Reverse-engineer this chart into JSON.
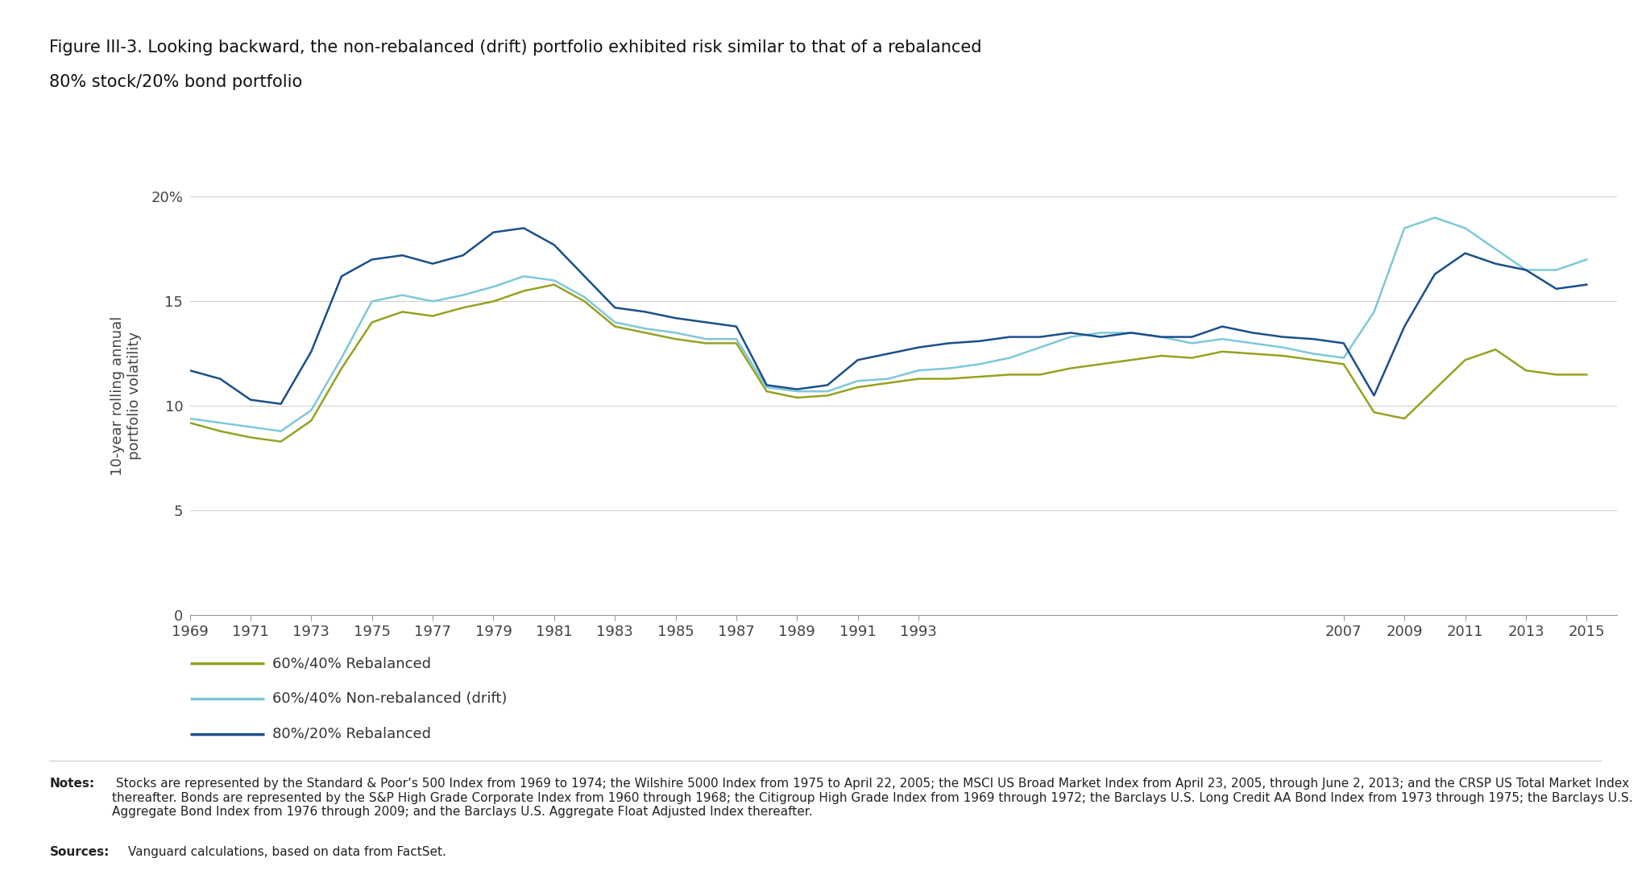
{
  "title_line1": "Figure III-3. Looking backward, the non-rebalanced (drift) portfolio exhibited risk similar to that of a rebalanced",
  "title_line2": "80% stock/20% bond portfolio",
  "ylabel": "10-year rolling annual\nportfolio volatility",
  "background_color": "#ffffff",
  "years": [
    1969,
    1970,
    1971,
    1972,
    1973,
    1974,
    1975,
    1976,
    1977,
    1978,
    1979,
    1980,
    1981,
    1982,
    1983,
    1984,
    1985,
    1986,
    1987,
    1988,
    1989,
    1990,
    1991,
    1992,
    1993,
    1994,
    1995,
    1996,
    1997,
    1998,
    1999,
    2000,
    2001,
    2002,
    2003,
    2004,
    2005,
    2006,
    2007,
    2008,
    2009,
    2010,
    2011,
    2012,
    2013,
    2014,
    2015
  ],
  "series_60_40_rebalanced": [
    9.2,
    8.8,
    8.5,
    8.3,
    9.3,
    11.8,
    14.0,
    14.5,
    14.3,
    14.7,
    15.0,
    15.5,
    15.8,
    15.0,
    13.8,
    13.5,
    13.2,
    13.0,
    13.0,
    10.7,
    10.4,
    10.5,
    10.9,
    11.1,
    11.3,
    11.3,
    11.4,
    11.5,
    11.5,
    11.8,
    12.0,
    12.2,
    12.4,
    12.3,
    12.6,
    12.5,
    12.4,
    12.2,
    12.0,
    9.7,
    9.4,
    10.8,
    12.2,
    12.7,
    11.7,
    11.5,
    11.5
  ],
  "series_60_40_nonrebalanced": [
    9.4,
    9.2,
    9.0,
    8.8,
    9.8,
    12.3,
    15.0,
    15.3,
    15.0,
    15.3,
    15.7,
    16.2,
    16.0,
    15.2,
    14.0,
    13.7,
    13.5,
    13.2,
    13.2,
    10.9,
    10.7,
    10.7,
    11.2,
    11.3,
    11.7,
    11.8,
    12.0,
    12.3,
    12.8,
    13.3,
    13.5,
    13.5,
    13.3,
    13.0,
    13.2,
    13.0,
    12.8,
    12.5,
    12.3,
    14.5,
    18.5,
    19.0,
    18.5,
    17.5,
    16.5,
    16.5,
    17.0
  ],
  "series_80_20_rebalanced": [
    11.7,
    11.3,
    10.3,
    10.1,
    12.6,
    16.2,
    17.0,
    17.2,
    16.8,
    17.2,
    18.3,
    18.5,
    17.7,
    16.2,
    14.7,
    14.5,
    14.2,
    14.0,
    13.8,
    11.0,
    10.8,
    11.0,
    12.2,
    12.5,
    12.8,
    13.0,
    13.1,
    13.3,
    13.3,
    13.5,
    13.3,
    13.5,
    13.3,
    13.3,
    13.8,
    13.5,
    13.3,
    13.2,
    13.0,
    10.5,
    13.8,
    16.3,
    17.3,
    16.8,
    16.5,
    15.6,
    15.8
  ],
  "color_60_40_rebal": "#96a220",
  "color_60_40_norebal": "#7ec8d8",
  "color_80_20_rebal": "#1a4f8a",
  "yticks": [
    0,
    5,
    10,
    15,
    20
  ],
  "ytick_labels": [
    "0",
    "5",
    "10",
    "15",
    "20%"
  ],
  "xtick_years": [
    1969,
    1971,
    1973,
    1975,
    1977,
    1979,
    1981,
    1983,
    1985,
    1987,
    1989,
    1991,
    1993,
    2007,
    2009,
    2011,
    2013,
    2015
  ],
  "xlim_min": 1969,
  "xlim_max": 2016,
  "ylim_min": 0,
  "ylim_max": 21,
  "legend_entries": [
    "60%/40% Rebalanced",
    "60%/40% Non-rebalanced (drift)",
    "80%/20% Rebalanced"
  ],
  "notes_bold": "Notes:",
  "notes_regular": " Stocks are represented by the Standard & Poor’s 500 Index from 1969 to 1974; the Wilshire 5000 Index from 1975 to April 22, 2005; the MSCI US Broad Market Index from April 23, 2005, through June 2, 2013; and the CRSP US Total Market Index thereafter. Bonds are represented by the S&P High Grade Corporate Index from 1960 through 1968; the Citigroup High Grade Index from 1969 through 1972; the Barclays U.S. Long Credit AA Bond Index from 1973 through 1975; the Barclays U.S. Aggregate Bond Index from 1976 through 2009; and the Barclays U.S. Aggregate Float Adjusted Index thereafter.",
  "sources_bold": "Sources:",
  "sources_regular": " Vanguard calculations, based on data from FactSet.",
  "title_fontsize": 15,
  "tick_fontsize": 13,
  "legend_fontsize": 13,
  "notes_fontsize": 11,
  "ylabel_fontsize": 13
}
